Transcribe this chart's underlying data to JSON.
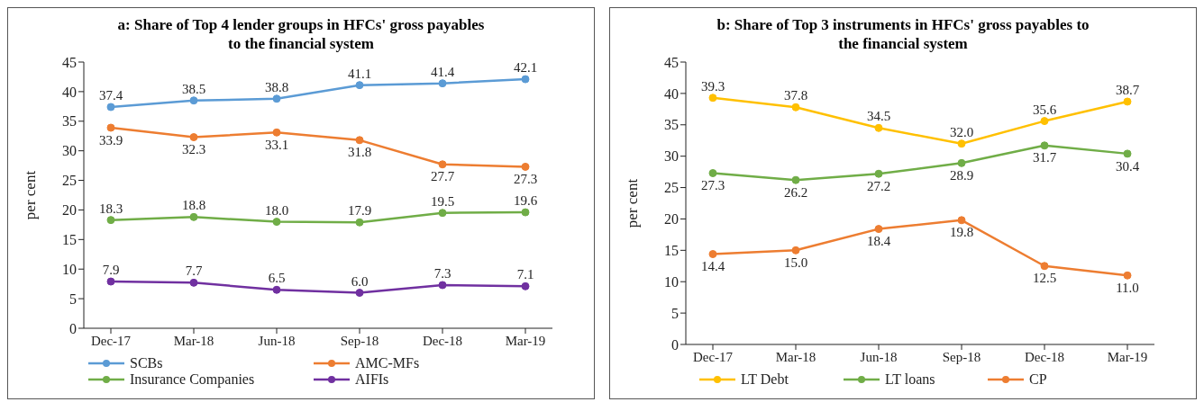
{
  "chart_data": [
    {
      "type": "line",
      "title": "a: Share of Top 4 lender groups in HFCs' gross payables to the financial system",
      "ylabel": "per cent",
      "categories": [
        "Dec-17",
        "Mar-18",
        "Jun-18",
        "Sep-18",
        "Dec-18",
        "Mar-19"
      ],
      "ylim": [
        0,
        45
      ],
      "yticks": [
        0,
        5,
        10,
        15,
        20,
        25,
        30,
        35,
        40,
        45
      ],
      "legend": "bottom",
      "marker": "circle",
      "line_style": "solid",
      "series": [
        {
          "name": "SCBs",
          "color": "#5b9bd5",
          "values": [
            37.4,
            38.5,
            38.8,
            41.1,
            41.4,
            42.1
          ],
          "value_labels": [
            "37.4",
            "38.5",
            "38.8",
            "41.1",
            "41.4",
            "42.1"
          ]
        },
        {
          "name": "AMC-MFs",
          "color": "#ed7d31",
          "values": [
            33.9,
            32.3,
            33.1,
            31.8,
            27.7,
            27.3
          ],
          "value_labels": [
            "33.9",
            "32.3",
            "33.1",
            "31.8",
            "27.7",
            "27.3"
          ]
        },
        {
          "name": "Insurance Companies",
          "color": "#70ad47",
          "values": [
            18.3,
            18.8,
            18.0,
            17.9,
            19.5,
            19.6
          ],
          "value_labels": [
            "18.3",
            "18.8",
            "18.0",
            "17.9",
            "19.5",
            "19.6"
          ]
        },
        {
          "name": "AIFIs",
          "color": "#7030a0",
          "values": [
            7.9,
            7.7,
            6.5,
            6.0,
            7.3,
            7.1
          ],
          "value_labels": [
            "7.9",
            "7.7",
            "6.5",
            "6.0",
            "7.3",
            "7.1"
          ]
        }
      ]
    },
    {
      "type": "line",
      "title": "b: Share of Top 3 instruments in HFCs' gross payables to the financial system",
      "ylabel": "per cent",
      "categories": [
        "Dec-17",
        "Mar-18",
        "Jun-18",
        "Sep-18",
        "Dec-18",
        "Mar-19"
      ],
      "ylim": [
        0,
        45
      ],
      "yticks": [
        0,
        5,
        10,
        15,
        20,
        25,
        30,
        35,
        40,
        45
      ],
      "legend": "bottom",
      "marker": "circle",
      "line_style": "solid",
      "series": [
        {
          "name": "LT Debt",
          "color": "#ffc000",
          "values": [
            39.3,
            37.8,
            34.5,
            32.0,
            35.6,
            38.7
          ],
          "value_labels": [
            "39.3",
            "37.8",
            "34.5",
            "32.0",
            "35.6",
            "38.7"
          ]
        },
        {
          "name": "LT loans",
          "color": "#70ad47",
          "values": [
            27.3,
            26.2,
            27.2,
            28.9,
            31.7,
            30.4
          ],
          "value_labels": [
            "27.3",
            "26.2",
            "27.2",
            "28.9",
            "31.7",
            "30.4"
          ]
        },
        {
          "name": "CP",
          "color": "#ed7d31",
          "values": [
            14.4,
            15.0,
            18.4,
            19.8,
            12.5,
            11.0
          ],
          "value_labels": [
            "14.4",
            "15.0",
            "18.4",
            "19.8",
            "12.5",
            "11.0"
          ]
        }
      ]
    }
  ]
}
